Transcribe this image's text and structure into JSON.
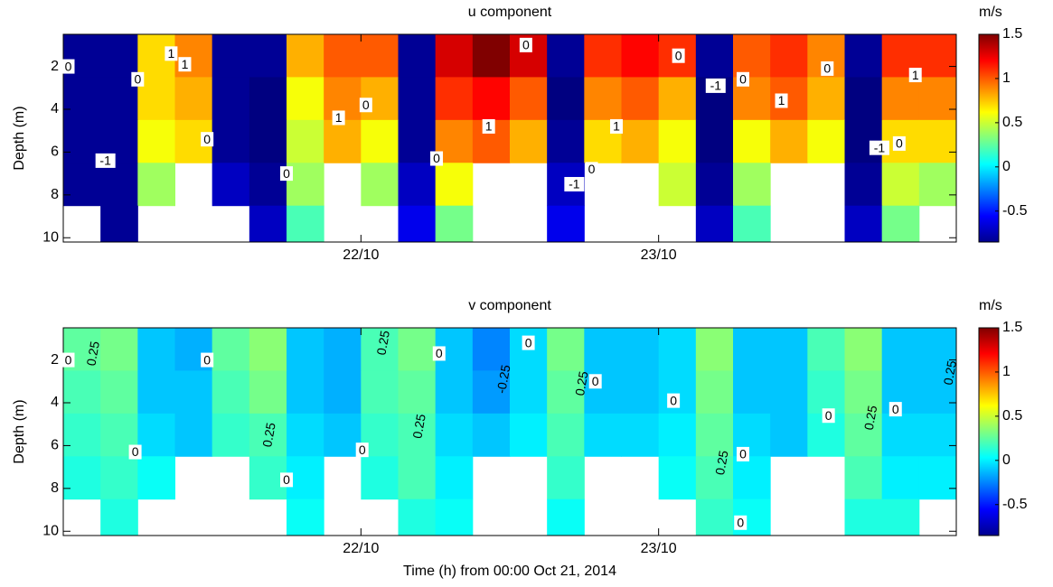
{
  "chart_data": [
    {
      "type": "heatmap",
      "title": "u component",
      "ylabel": "Depth (m)",
      "colorbar_label": "m/s",
      "colormap": "jet",
      "xlim": [
        0,
        72
      ],
      "xticks": [
        {
          "value": 24,
          "label": "22/10"
        },
        {
          "value": 48,
          "label": "23/10"
        }
      ],
      "ylim": [
        0.5,
        10.2
      ],
      "y_reversed": true,
      "yticks": [
        2,
        4,
        6,
        8,
        10
      ],
      "clim": [
        -0.85,
        1.5
      ],
      "cticks": [
        -0.5,
        0,
        0.5,
        1,
        1.5
      ],
      "x": [
        1.5,
        4.5,
        7.5,
        10.5,
        13.5,
        16.5,
        19.5,
        22.5,
        25.5,
        28.5,
        31.5,
        34.5,
        37.5,
        40.5,
        43.5,
        46.5,
        49.5,
        52.5,
        55.5,
        58.5,
        61.5,
        64.5,
        67.5,
        70.5
      ],
      "y": [
        1.5,
        3.5,
        5.5,
        7.5,
        9.5
      ],
      "values": [
        [
          -0.8,
          -0.8,
          0.7,
          0.9,
          -0.8,
          -0.8,
          0.8,
          1.0,
          1.0,
          -0.8,
          1.3,
          1.5,
          1.3,
          -0.8,
          1.1,
          1.2,
          1.1,
          -0.8,
          1.0,
          1.1,
          0.9,
          -0.8,
          1.1,
          1.1
        ],
        [
          -0.8,
          -0.8,
          0.7,
          0.8,
          -0.8,
          -0.85,
          0.6,
          0.9,
          0.8,
          -0.8,
          1.1,
          1.2,
          1.0,
          -0.85,
          0.9,
          1.0,
          0.8,
          -0.85,
          0.9,
          1.0,
          0.8,
          -0.85,
          0.9,
          0.9
        ],
        [
          -0.8,
          -0.8,
          0.6,
          0.7,
          -0.8,
          -0.85,
          0.5,
          0.8,
          0.6,
          -0.8,
          0.9,
          1.0,
          0.8,
          -0.8,
          0.7,
          0.8,
          0.6,
          -0.85,
          0.6,
          0.8,
          0.6,
          -0.85,
          0.7,
          0.7
        ],
        [
          -0.8,
          -0.8,
          0.4,
          null,
          -0.7,
          -0.8,
          0.4,
          null,
          0.4,
          -0.7,
          0.6,
          null,
          null,
          -0.7,
          null,
          null,
          0.5,
          -0.8,
          0.4,
          null,
          null,
          -0.8,
          0.5,
          0.4
        ],
        [
          null,
          -0.8,
          null,
          null,
          null,
          -0.7,
          0.2,
          null,
          null,
          -0.6,
          0.3,
          null,
          null,
          -0.6,
          null,
          null,
          null,
          -0.7,
          0.2,
          null,
          null,
          -0.7,
          0.3,
          null
        ]
      ],
      "contour_labels": [
        {
          "x": 0.4,
          "y": 2.0,
          "label": "0"
        },
        {
          "x": 8.7,
          "y": 1.4,
          "label": "1"
        },
        {
          "x": 9.8,
          "y": 1.9,
          "label": "1"
        },
        {
          "x": 6.0,
          "y": 2.6,
          "label": "0"
        },
        {
          "x": 3.4,
          "y": 6.4,
          "label": "-1"
        },
        {
          "x": 11.6,
          "y": 5.4,
          "label": "0"
        },
        {
          "x": 18.0,
          "y": 7.0,
          "label": "0"
        },
        {
          "x": 24.4,
          "y": 3.8,
          "label": "0"
        },
        {
          "x": 22.2,
          "y": 4.4,
          "label": "1"
        },
        {
          "x": 30.1,
          "y": 6.3,
          "label": "0"
        },
        {
          "x": 37.3,
          "y": 1.0,
          "label": "0"
        },
        {
          "x": 34.3,
          "y": 4.8,
          "label": "1"
        },
        {
          "x": 49.6,
          "y": 1.5,
          "label": "0"
        },
        {
          "x": 44.6,
          "y": 4.8,
          "label": "1"
        },
        {
          "x": 42.6,
          "y": 6.8,
          "label": "0"
        },
        {
          "x": 41.2,
          "y": 7.5,
          "label": "-1"
        },
        {
          "x": 52.6,
          "y": 2.9,
          "label": "-1"
        },
        {
          "x": 54.8,
          "y": 2.6,
          "label": "0"
        },
        {
          "x": 57.9,
          "y": 3.6,
          "label": "1"
        },
        {
          "x": 61.6,
          "y": 2.1,
          "label": "0"
        },
        {
          "x": 65.8,
          "y": 5.8,
          "label": "-1"
        },
        {
          "x": 67.4,
          "y": 5.6,
          "label": "0"
        },
        {
          "x": 68.7,
          "y": 2.4,
          "label": "1"
        }
      ]
    },
    {
      "type": "heatmap",
      "title": "v component",
      "ylabel": "Depth (m)",
      "xlabel": "Time (h) from 00:00 Oct 21, 2014",
      "colorbar_label": "m/s",
      "colormap": "jet",
      "xlim": [
        0,
        72
      ],
      "xticks": [
        {
          "value": 24,
          "label": "22/10"
        },
        {
          "value": 48,
          "label": "23/10"
        }
      ],
      "ylim": [
        0.5,
        10.2
      ],
      "y_reversed": true,
      "yticks": [
        2,
        4,
        6,
        8,
        10
      ],
      "clim": [
        -0.85,
        1.5
      ],
      "cticks": [
        -0.5,
        0,
        0.5,
        1,
        1.5
      ],
      "x": [
        1.5,
        4.5,
        7.5,
        10.5,
        13.5,
        16.5,
        19.5,
        22.5,
        25.5,
        28.5,
        31.5,
        34.5,
        37.5,
        40.5,
        43.5,
        46.5,
        49.5,
        52.5,
        55.5,
        58.5,
        61.5,
        64.5,
        67.5,
        70.5
      ],
      "y": [
        1.5,
        3.5,
        5.5,
        7.5,
        9.5
      ],
      "values": [
        [
          0.25,
          0.3,
          -0.1,
          -0.15,
          0.25,
          0.35,
          -0.1,
          -0.15,
          0.2,
          0.3,
          -0.1,
          -0.25,
          -0.05,
          0.3,
          -0.1,
          -0.1,
          -0.05,
          0.35,
          -0.1,
          -0.1,
          0.2,
          0.35,
          -0.1,
          -0.1
        ],
        [
          0.2,
          0.25,
          -0.1,
          -0.1,
          0.2,
          0.3,
          -0.1,
          -0.15,
          0.2,
          0.25,
          -0.1,
          -0.2,
          -0.05,
          0.25,
          -0.1,
          -0.1,
          -0.05,
          0.3,
          -0.1,
          -0.1,
          0.15,
          0.3,
          -0.1,
          -0.1
        ],
        [
          0.15,
          0.2,
          -0.05,
          -0.1,
          0.15,
          0.2,
          -0.05,
          -0.1,
          0.15,
          0.2,
          -0.05,
          -0.1,
          0.0,
          0.2,
          -0.05,
          -0.05,
          0.0,
          0.25,
          -0.05,
          -0.1,
          0.1,
          0.25,
          -0.05,
          -0.05
        ],
        [
          0.1,
          0.15,
          0.05,
          null,
          null,
          0.15,
          0.0,
          null,
          0.1,
          0.2,
          0.0,
          null,
          null,
          0.15,
          null,
          null,
          0.05,
          0.2,
          0.0,
          null,
          null,
          0.2,
          0.0,
          0.0
        ],
        [
          null,
          0.1,
          null,
          null,
          null,
          null,
          0.05,
          null,
          null,
          0.1,
          0.05,
          null,
          null,
          0.05,
          null,
          null,
          null,
          0.15,
          0.05,
          null,
          null,
          0.1,
          0.1,
          null
        ]
      ],
      "contour_labels": [
        {
          "x": 0.4,
          "y": 2.0,
          "label": "0"
        },
        {
          "x": 2.4,
          "y": 1.7,
          "label": "0.25",
          "rotated": true
        },
        {
          "x": 5.8,
          "y": 6.3,
          "label": "0"
        },
        {
          "x": 11.6,
          "y": 2.0,
          "label": "0"
        },
        {
          "x": 16.6,
          "y": 5.5,
          "label": "0.25",
          "rotated": true
        },
        {
          "x": 18.0,
          "y": 7.6,
          "label": "0"
        },
        {
          "x": 24.1,
          "y": 6.2,
          "label": "0"
        },
        {
          "x": 25.8,
          "y": 1.2,
          "label": "0.25",
          "rotated": true
        },
        {
          "x": 28.7,
          "y": 5.1,
          "label": "0.25",
          "rotated": true
        },
        {
          "x": 30.3,
          "y": 1.7,
          "label": "0"
        },
        {
          "x": 35.5,
          "y": 2.9,
          "label": "-0.25",
          "rotated": true
        },
        {
          "x": 37.5,
          "y": 1.2,
          "label": "0"
        },
        {
          "x": 41.8,
          "y": 3.1,
          "label": "0.25",
          "rotated": true
        },
        {
          "x": 42.9,
          "y": 3.0,
          "label": "0"
        },
        {
          "x": 49.2,
          "y": 3.9,
          "label": "0"
        },
        {
          "x": 53.1,
          "y": 6.8,
          "label": "0.25",
          "rotated": true
        },
        {
          "x": 54.8,
          "y": 6.4,
          "label": "0"
        },
        {
          "x": 54.6,
          "y": 9.6,
          "label": "0"
        },
        {
          "x": 61.7,
          "y": 4.6,
          "label": "0"
        },
        {
          "x": 65.1,
          "y": 4.7,
          "label": "0.25",
          "rotated": true
        },
        {
          "x": 67.1,
          "y": 4.3,
          "label": "0"
        },
        {
          "x": 71.5,
          "y": 2.6,
          "label": "0.25",
          "rotated": true
        }
      ]
    }
  ]
}
